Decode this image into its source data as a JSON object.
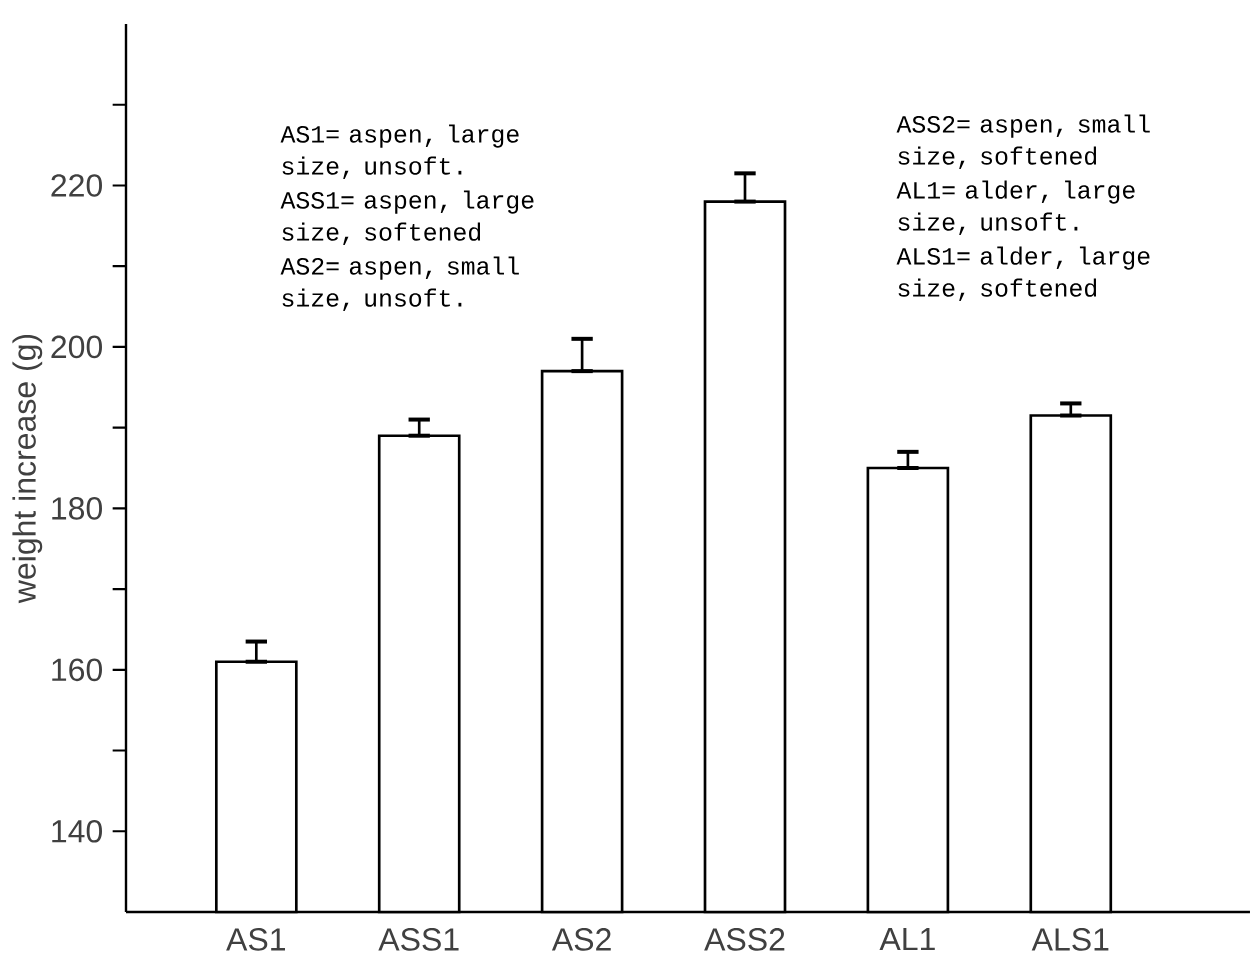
{
  "chart_data": {
    "type": "bar",
    "ylabel": "weight increase (g)",
    "categories": [
      "AS1",
      "ASS1",
      "AS2",
      "ASS2",
      "AL1",
      "ALS1"
    ],
    "values": [
      161,
      189,
      197,
      218,
      185,
      191.5
    ],
    "errors": [
      [
        161,
        163.5
      ],
      [
        189,
        191
      ],
      [
        197,
        201
      ],
      [
        218,
        221.5
      ],
      [
        185,
        187
      ],
      [
        191.5,
        193
      ]
    ],
    "color": "#ffffff",
    "ylim": [
      130,
      240
    ],
    "yticks": [
      140,
      {
        "value": 150,
        "label": null
      },
      160,
      {
        "value": 170,
        "label": null
      },
      180,
      {
        "value": 190,
        "label": null
      },
      200,
      {
        "value": 210,
        "label": null
      },
      220,
      {
        "value": 230,
        "label": null
      }
    ],
    "annotations": [
      "AS1= aspen, large size, unsoft.",
      "ASS1= aspen, large size, softened",
      "AS2= aspen, small size, unsoft.",
      "ASS2= aspen, small size, softened",
      "AL1= alder, large size, unsoft.",
      "ALS1= alder, large size, softened"
    ]
  }
}
